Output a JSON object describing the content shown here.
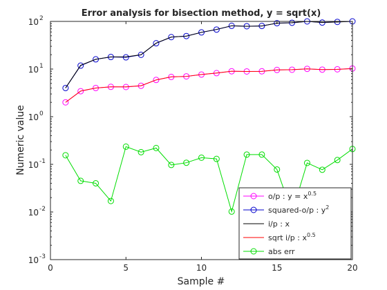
{
  "chart_data": {
    "type": "line",
    "title": "Error analysis for bisection method, y = sqrt(x)",
    "xlabel": "Sample #",
    "ylabel": "Numeric value",
    "xlim": [
      0,
      20
    ],
    "ylim": [
      0.001,
      100
    ],
    "yscale": "log",
    "grid": false,
    "x_ticks": [
      0,
      5,
      10,
      15,
      20
    ],
    "y_ticks": [
      {
        "base": "10",
        "exp": "-3",
        "value": 0.001
      },
      {
        "base": "10",
        "exp": "-2",
        "value": 0.01
      },
      {
        "base": "10",
        "exp": "-1",
        "value": 0.1
      },
      {
        "base": "10",
        "exp": "0",
        "value": 1
      },
      {
        "base": "10",
        "exp": "1",
        "value": 10
      },
      {
        "base": "10",
        "exp": "2",
        "value": 100
      }
    ],
    "legend_position": "bottom-right",
    "x": [
      1,
      2,
      3,
      4,
      5,
      6,
      7,
      8,
      9,
      10,
      11,
      12,
      13,
      14,
      15,
      16,
      17,
      18,
      19,
      20
    ],
    "series": [
      {
        "name": "o/p : y = x",
        "name_sup": "0.5",
        "color": "#ff00ff",
        "marker": "circle",
        "values": [
          2.0,
          3.43,
          4.0,
          4.23,
          4.2,
          4.46,
          5.9,
          6.84,
          7.02,
          7.67,
          8.21,
          8.99,
          8.9,
          8.96,
          9.58,
          9.68,
          10.1,
          9.73,
          9.88,
          10.27
        ]
      },
      {
        "name": "squared-o/p : y",
        "name_sup": "2",
        "color": "#0000cc",
        "marker": "circle",
        "values": [
          4.0,
          11.8,
          16.0,
          17.9,
          17.6,
          19.9,
          34.8,
          46.8,
          49.3,
          58.8,
          67.4,
          80.8,
          79.2,
          80.3,
          91.8,
          93.7,
          102.0,
          94.7,
          97.6,
          105.5
        ]
      },
      {
        "name": "i/p : x",
        "name_sup": "",
        "color": "#000000",
        "marker": "none",
        "values": [
          4,
          12,
          16,
          18,
          18,
          20,
          35,
          47,
          49,
          59,
          68,
          81,
          79,
          80,
          92,
          94,
          102,
          95,
          97,
          105
        ]
      },
      {
        "name": "sqrt i/p : x",
        "name_sup": "0.5",
        "color": "#ff0000",
        "marker": "none",
        "values": [
          2.0,
          3.46,
          4.0,
          4.24,
          4.24,
          4.47,
          5.92,
          6.86,
          7.0,
          7.68,
          8.25,
          9.0,
          8.89,
          8.94,
          9.59,
          9.7,
          10.1,
          9.75,
          9.85,
          10.25
        ]
      },
      {
        "name": "abs err",
        "name_sup": "",
        "color": "#00dd00",
        "marker": "circle",
        "values": [
          0.155,
          0.045,
          0.04,
          0.017,
          0.235,
          0.18,
          0.22,
          0.097,
          0.108,
          0.138,
          0.13,
          0.0102,
          0.16,
          0.16,
          0.078,
          0.0095,
          0.107,
          0.077,
          0.123,
          0.21
        ]
      }
    ]
  }
}
